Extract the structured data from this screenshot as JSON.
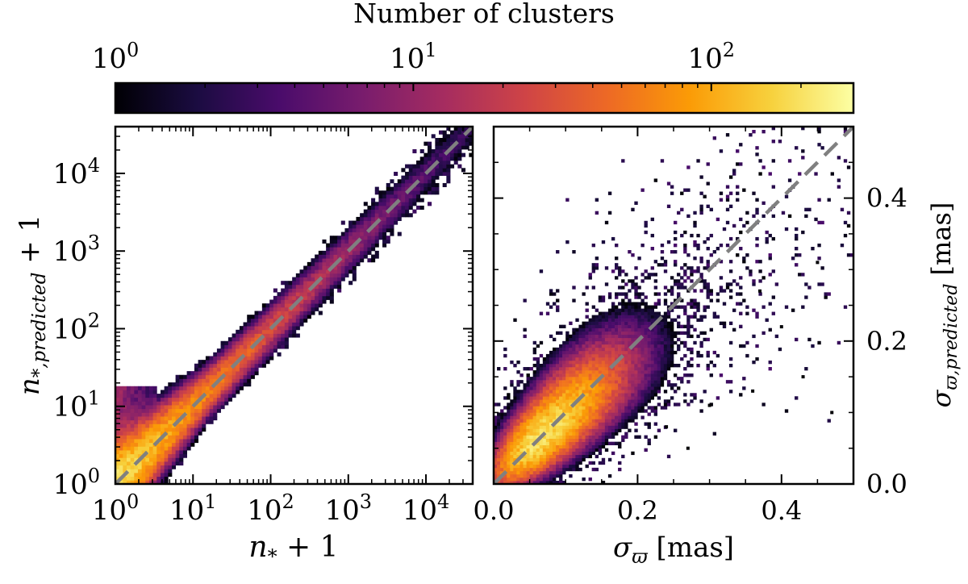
{
  "chart_data": [
    {
      "type": "colorbar",
      "label": "Number of clusters",
      "scale": "log",
      "ticks": [
        {
          "base": "10",
          "exp": "0",
          "value": 1
        },
        {
          "base": "10",
          "exp": "1",
          "value": 10
        },
        {
          "base": "10",
          "exp": "2",
          "value": 100
        }
      ],
      "range": [
        1,
        300
      ],
      "colormap": "inferno",
      "stops": [
        "#000004",
        "#1b0c41",
        "#4a0c6b",
        "#781c6d",
        "#a52c60",
        "#cf4446",
        "#ed6925",
        "#fb9b06",
        "#f7d13d",
        "#fcffa4"
      ]
    },
    {
      "type": "heatmap",
      "panel": "left",
      "xscale": "log",
      "yscale": "log",
      "xlim": [
        1,
        40000
      ],
      "ylim": [
        1,
        40000
      ],
      "xlabel": {
        "main": "n",
        "sub": "*",
        "tail": " + 1"
      },
      "ylabel": {
        "main": "n",
        "sub": "*,predicted",
        "tail": " + 1"
      },
      "xticks": [
        {
          "base": "10",
          "exp": "0",
          "value": 1
        },
        {
          "base": "10",
          "exp": "1",
          "value": 10
        },
        {
          "base": "10",
          "exp": "2",
          "value": 100
        },
        {
          "base": "10",
          "exp": "3",
          "value": 1000
        },
        {
          "base": "10",
          "exp": "4",
          "value": 10000
        }
      ],
      "yticks": [
        {
          "base": "10",
          "exp": "0",
          "value": 1
        },
        {
          "base": "10",
          "exp": "1",
          "value": 10
        },
        {
          "base": "10",
          "exp": "2",
          "value": 100
        },
        {
          "base": "10",
          "exp": "3",
          "value": 1000
        },
        {
          "base": "10",
          "exp": "4",
          "value": 10000
        }
      ],
      "reference_line": {
        "from": [
          1,
          1
        ],
        "to": [
          40000,
          40000
        ],
        "style": "dashed",
        "color": "#808080"
      },
      "density_ridge": {
        "x": [
          1,
          10,
          100,
          1000,
          10000,
          40000
        ],
        "y": [
          1,
          10,
          100,
          1000,
          10000,
          40000
        ],
        "spread_dex": 0.15,
        "peak_count": 200
      }
    },
    {
      "type": "heatmap",
      "panel": "right",
      "xscale": "linear",
      "yscale": "linear",
      "xlim": [
        0,
        0.5
      ],
      "ylim": [
        0,
        0.5
      ],
      "xlabel": {
        "main": "σ",
        "sub": "ϖ",
        "tail": " [mas]"
      },
      "ylabel": {
        "main": "σ",
        "sub": "ϖ,predicted",
        "tail": " [mas]"
      },
      "xticks": [
        {
          "label": "0.0",
          "value": 0.0
        },
        {
          "label": "0.2",
          "value": 0.2
        },
        {
          "label": "0.4",
          "value": 0.4
        }
      ],
      "yticks": [
        {
          "label": "0.0",
          "value": 0.0
        },
        {
          "label": "0.2",
          "value": 0.2
        },
        {
          "label": "0.4",
          "value": 0.4
        }
      ],
      "reference_line": {
        "from": [
          0,
          0
        ],
        "to": [
          0.5,
          0.5
        ],
        "style": "dashed",
        "color": "#808080"
      },
      "density_core": {
        "center": [
          0.06,
          0.06
        ],
        "peak_count": 200
      },
      "outliers": [
        [
          0.33,
          0.33
        ],
        [
          0.45,
          0.31
        ],
        [
          0.47,
          0.1
        ],
        [
          0.43,
          0.15
        ],
        [
          0.4,
          0.22
        ],
        [
          0.36,
          0.13
        ],
        [
          0.3,
          0.11
        ],
        [
          0.27,
          0.05
        ],
        [
          0.24,
          0.08
        ],
        [
          0.37,
          0.27
        ]
      ]
    }
  ]
}
